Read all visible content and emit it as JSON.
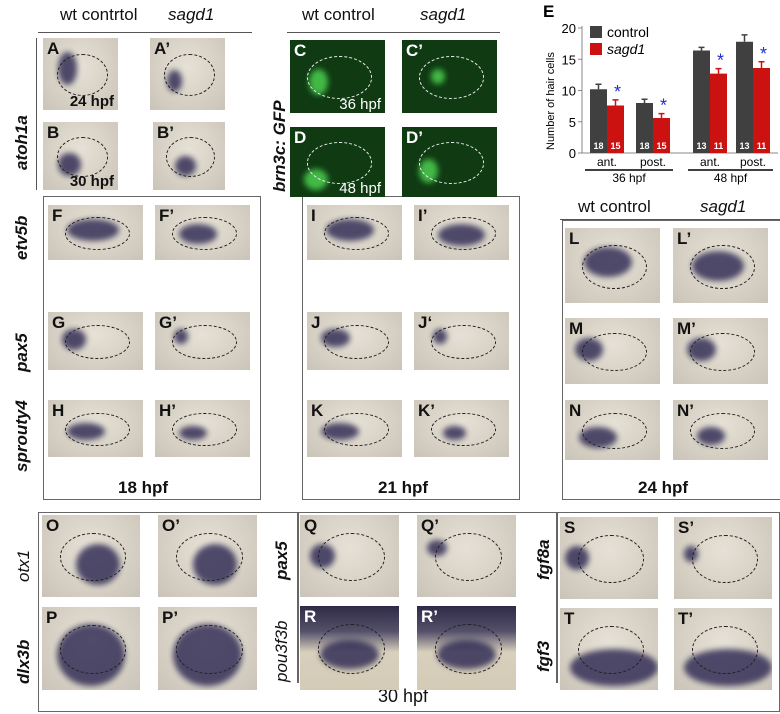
{
  "top_left": {
    "col_headers": [
      "wt contrtol",
      "sagd1"
    ],
    "gene": "atoh1a"
  },
  "top_mid": {
    "col_headers": [
      "wt control",
      "sagd1"
    ],
    "gene": "brn3c: GFP"
  },
  "mid": {
    "col_headers": [
      "wt control",
      "sagd1"
    ],
    "genes": [
      "etv5b",
      "pax5",
      "sprouty4"
    ],
    "stages": [
      "18 hpf",
      "21 hpf",
      "24 hpf"
    ]
  },
  "bottom": {
    "genes": [
      "otx1",
      "dlx3b",
      "pax5",
      "pou3f3b",
      "fgf8a",
      "fgf3"
    ],
    "stage": "30 hpf"
  },
  "panels": [
    {
      "letter": "A",
      "style": "ish",
      "time": "24 hpf"
    },
    {
      "letter": "A’",
      "style": "ish"
    },
    {
      "letter": "B",
      "style": "ish",
      "time": "30 hpf"
    },
    {
      "letter": "B’",
      "style": "ish"
    },
    {
      "letter": "C",
      "style": "gfp",
      "time": "36 hpf"
    },
    {
      "letter": "C’",
      "style": "gfp"
    },
    {
      "letter": "D",
      "style": "gfp",
      "time": "48 hpf"
    },
    {
      "letter": "D’",
      "style": "gfp"
    },
    {
      "letter": "F",
      "style": "ish"
    },
    {
      "letter": "F’",
      "style": "ish"
    },
    {
      "letter": "G",
      "style": "ish"
    },
    {
      "letter": "G’",
      "style": "ish"
    },
    {
      "letter": "H",
      "style": "ish"
    },
    {
      "letter": "H’",
      "style": "ish"
    },
    {
      "letter": "I",
      "style": "ish"
    },
    {
      "letter": "I’",
      "style": "ish"
    },
    {
      "letter": "J",
      "style": "ish"
    },
    {
      "letter": "J‘",
      "style": "ish"
    },
    {
      "letter": "K",
      "style": "ish"
    },
    {
      "letter": "K’",
      "style": "ish"
    },
    {
      "letter": "L",
      "style": "ish"
    },
    {
      "letter": "L’",
      "style": "ish"
    },
    {
      "letter": "M",
      "style": "ish"
    },
    {
      "letter": "M’",
      "style": "ish"
    },
    {
      "letter": "N",
      "style": "ish"
    },
    {
      "letter": "N’",
      "style": "ish"
    },
    {
      "letter": "O",
      "style": "ish"
    },
    {
      "letter": "O’",
      "style": "ish"
    },
    {
      "letter": "P",
      "style": "ish"
    },
    {
      "letter": "P’",
      "style": "ish"
    },
    {
      "letter": "Q",
      "style": "ish"
    },
    {
      "letter": "Q’",
      "style": "ish"
    },
    {
      "letter": "R",
      "style": "dark"
    },
    {
      "letter": "R’",
      "style": "dark"
    },
    {
      "letter": "S",
      "style": "ish"
    },
    {
      "letter": "S’",
      "style": "ish"
    },
    {
      "letter": "T",
      "style": "ish"
    },
    {
      "letter": "T’",
      "style": "ish"
    }
  ],
  "chart_data": {
    "panel_letter": "E",
    "type": "bar",
    "ylabel": "Number of hair cells",
    "ylim": [
      0,
      20
    ],
    "yticks": [
      0,
      5,
      10,
      15,
      20
    ],
    "categories": [
      "ant.",
      "post.",
      "ant.",
      "post."
    ],
    "groups": [
      {
        "label": "36 hpf",
        "categories": [
          0,
          1
        ]
      },
      {
        "label": "48 hpf",
        "categories": [
          2,
          3
        ]
      }
    ],
    "series": [
      {
        "name": "control",
        "color": "#404040",
        "values": [
          10.2,
          8.0,
          16.4,
          17.8
        ],
        "errors": [
          0.8,
          0.6,
          0.5,
          1.1
        ],
        "n": [
          "18",
          "18",
          "13",
          "13"
        ]
      },
      {
        "name": "sagd1",
        "color": "#cc1111",
        "values": [
          7.6,
          5.6,
          12.7,
          13.6
        ],
        "errors": [
          0.9,
          0.7,
          0.8,
          1.0
        ],
        "n": [
          "15",
          "15",
          "11",
          "11"
        ]
      }
    ],
    "significance_marker": "*",
    "significance_color": "#1a2fd6",
    "legend": "top-left",
    "grid": false
  }
}
